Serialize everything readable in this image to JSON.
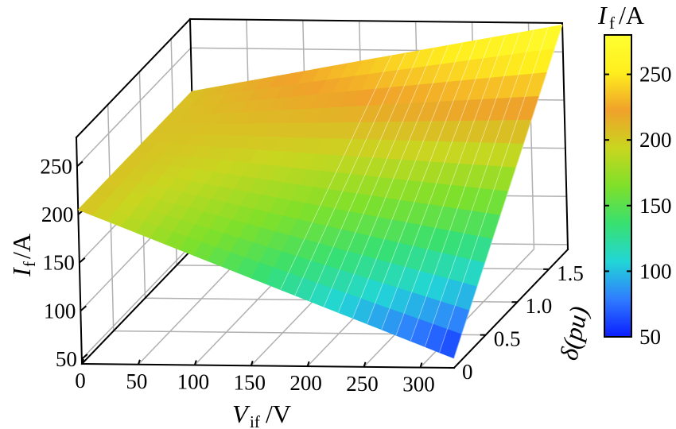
{
  "chart_data": {
    "type": "surface3d",
    "title": "",
    "x_axis": {
      "label": "V",
      "label_sub": "if",
      "label_unit": "/V",
      "ticks": [
        "0",
        "50",
        "100",
        "150",
        "200",
        "250",
        "300"
      ],
      "range": [
        0,
        330
      ]
    },
    "y_axis": {
      "label": "δ(pu)",
      "ticks": [
        "0",
        "0.5",
        "1.0",
        "1.5"
      ],
      "range": [
        0,
        1.8
      ]
    },
    "z_axis": {
      "label": "I",
      "label_sub": "f",
      "label_unit": "/A",
      "ticks": [
        "50",
        "100",
        "150",
        "200",
        "250"
      ],
      "range": [
        45,
        280
      ]
    },
    "colorbar": {
      "label": "I",
      "label_sub": "f",
      "label_unit": "/A",
      "ticks": [
        "50",
        "100",
        "150",
        "200",
        "250"
      ],
      "range": [
        50,
        280
      ],
      "colormap": [
        "#0b1eff",
        "#2f7dff",
        "#22d6d6",
        "#38e070",
        "#7fe02a",
        "#c9d620",
        "#f0a12a",
        "#ffee1e",
        "#ffff30"
      ]
    },
    "surface": {
      "corners": [
        {
          "V_if": 0,
          "delta": 0,
          "I_f": 205
        },
        {
          "V_if": 0,
          "delta": 1.8,
          "I_f": 205
        },
        {
          "V_if": 330,
          "delta": 0,
          "I_f": 55
        },
        {
          "V_if": 330,
          "delta": 1.8,
          "I_f": 278
        }
      ]
    },
    "grid": true
  }
}
